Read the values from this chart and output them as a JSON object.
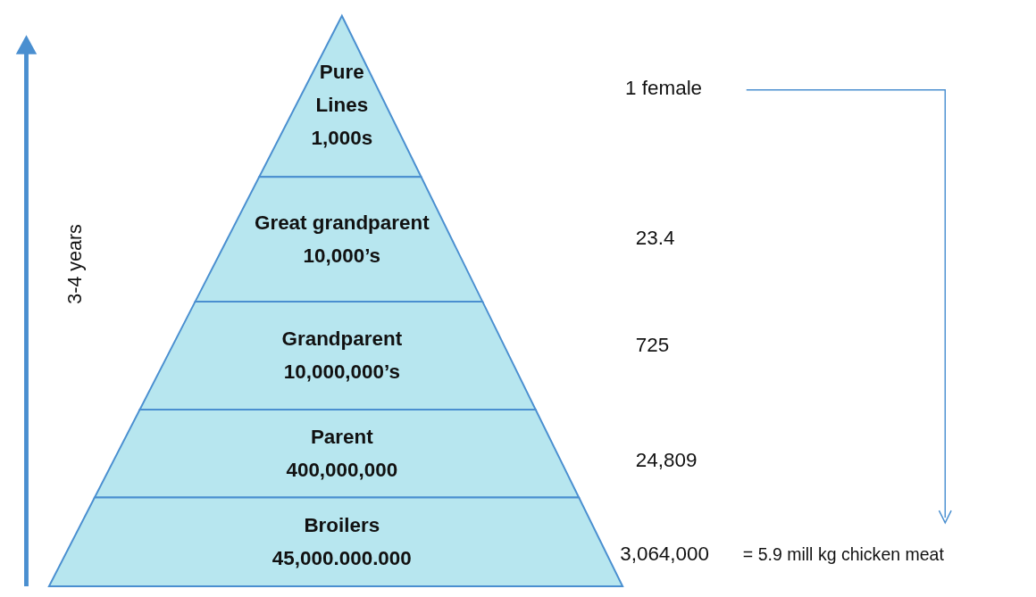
{
  "chart_data": {
    "type": "other",
    "categories": [
      "Pure Lines",
      "Great grandparent",
      "Grandparent",
      "Parent",
      "Broilers"
    ],
    "series": [
      {
        "color": "#b7e6ef",
        "values": [
          1000,
          10000,
          10000000,
          400000000,
          null
        ],
        "value_labels": [
          "1,000s",
          "10,000’s",
          "10,000,000’s",
          "400,000,000",
          "45,000.000.000"
        ]
      },
      {
        "values": [
          1,
          23.4,
          725,
          24809,
          3064000
        ],
        "value_labels": [
          "1 female",
          "23.4",
          "725",
          "24,809",
          "3,064,000"
        ]
      }
    ],
    "annotations": [
      "= 5.9 mill kg chicken meat",
      "3-4 years"
    ]
  }
}
